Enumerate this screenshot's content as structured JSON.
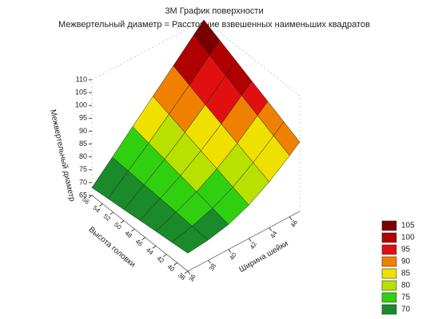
{
  "chart_data": {
    "type": "surface",
    "title": "3М График поверхности",
    "subtitle": "Межвертельный диаметр = Расстояние взвешенных наименьших квадратов",
    "x_label": "Ширина шейки",
    "y_label": "Высота головки",
    "z_label": "Межвертельный диаметр",
    "x": [
      36,
      38,
      40,
      42,
      44,
      46,
      47
    ],
    "y": [
      38,
      41,
      44,
      47,
      50,
      53,
      56
    ],
    "z": [
      [
        72,
        72.9,
        74.7,
        78.0,
        82.8,
        88.8,
        92
      ],
      [
        71.3,
        73.4,
        76.1,
        80.1,
        85.4,
        91.6,
        95
      ],
      [
        70.7,
        73.9,
        77.6,
        82.3,
        88.0,
        94.6,
        98
      ],
      [
        70,
        74.3,
        79.0,
        84.4,
        90.6,
        97.5,
        101
      ],
      [
        69.3,
        74.7,
        80.4,
        86.6,
        93.2,
        100.3,
        104
      ],
      [
        68.7,
        75.2,
        81.8,
        88.8,
        95.9,
        103.3,
        107
      ],
      [
        68,
        75.6,
        83.3,
        90.9,
        98.5,
        106.2,
        110
      ]
    ],
    "xlim": [
      36,
      47
    ],
    "xticks": [
      36,
      38,
      40,
      42,
      44,
      46
    ],
    "ylim": [
      38,
      56
    ],
    "yticks": [
      38,
      40,
      42,
      44,
      46,
      48,
      50,
      52,
      54,
      56
    ],
    "zlim": [
      65,
      110
    ],
    "zticks": [
      65,
      70,
      75,
      80,
      85,
      90,
      95,
      100,
      105,
      110
    ],
    "levels": [
      {
        "value": 105,
        "color": "#7a0000"
      },
      {
        "value": 100,
        "color": "#b00000"
      },
      {
        "value": 95,
        "color": "#e01010"
      },
      {
        "value": 90,
        "color": "#f08000"
      },
      {
        "value": 85,
        "color": "#f0e000"
      },
      {
        "value": 80,
        "color": "#b8e000"
      },
      {
        "value": 75,
        "color": "#30d010"
      },
      {
        "value": 70,
        "color": "#1a8a2a"
      }
    ]
  }
}
